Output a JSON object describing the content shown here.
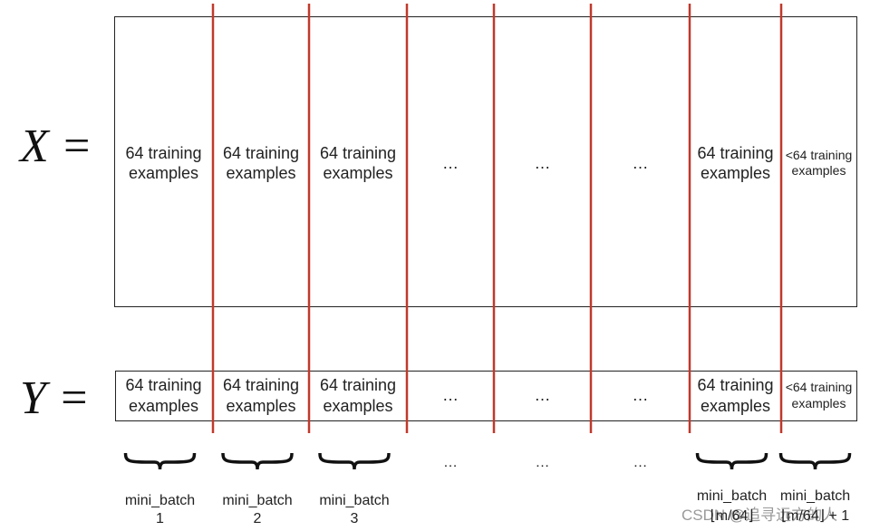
{
  "x_matrix": {
    "label": "X =",
    "cells": [
      "64 training examples",
      "64 training examples",
      "64 training examples",
      "…",
      "…",
      "…",
      "64 training examples",
      "<64 training examples"
    ]
  },
  "y_matrix": {
    "label": "Y =",
    "cells": [
      "64 training examples",
      "64 training examples",
      "64 training examples",
      "…",
      "…",
      "…",
      "64 training examples",
      "<64 training examples"
    ]
  },
  "batches": [
    {
      "name": "mini_batch",
      "index": "1"
    },
    {
      "name": "mini_batch",
      "index": "2"
    },
    {
      "name": "mini_batch",
      "index": "3"
    },
    {
      "name": "mini_batch",
      "index": "⌊m/64⌋"
    },
    {
      "name": "mini_batch",
      "index": "⌊m/64⌋ + 1"
    }
  ],
  "batch_gaps": [
    "…",
    "…",
    "…"
  ],
  "watermark": "CSDN @追寻远方的人"
}
